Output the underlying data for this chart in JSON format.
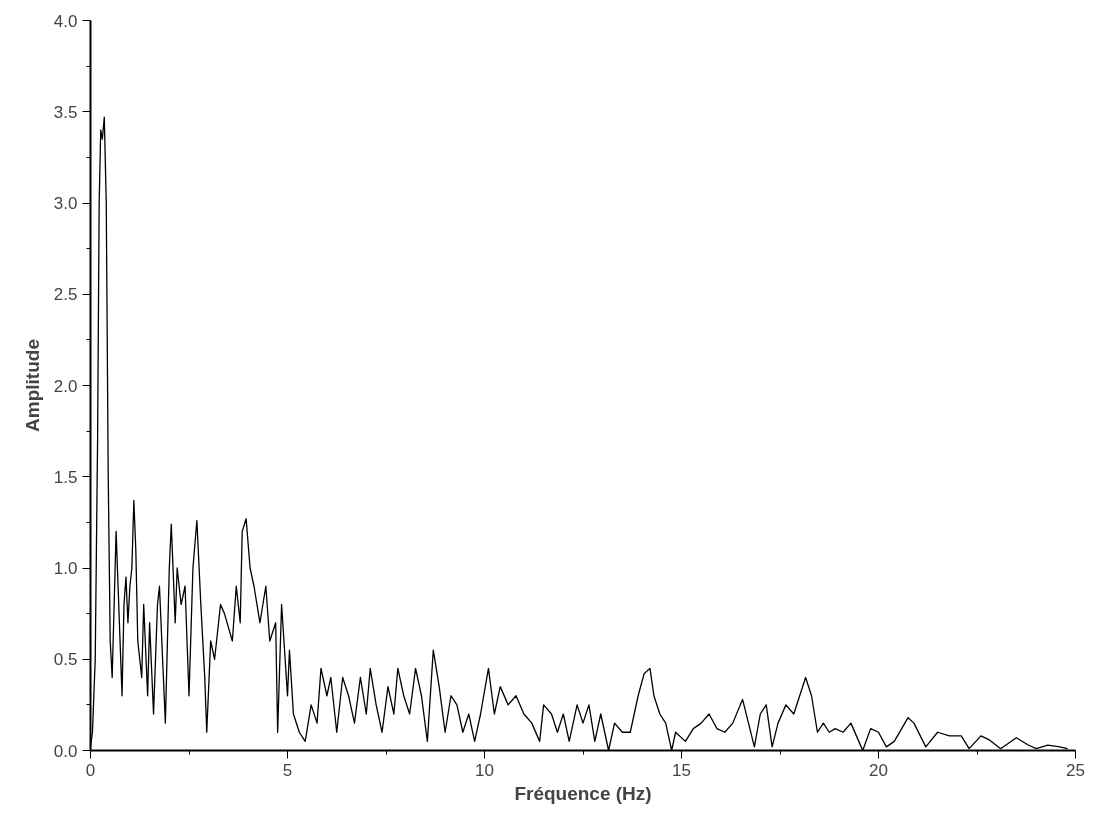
{
  "chart_data": {
    "type": "line",
    "xlabel": "Fréquence (Hz)",
    "ylabel": "Amplitude",
    "xlim": [
      0,
      25
    ],
    "ylim": [
      0,
      4.0
    ],
    "xticks": [
      0,
      5,
      10,
      15,
      20,
      25
    ],
    "yticks": [
      {
        "value": 0,
        "label": "0.0"
      },
      0.5,
      {
        "value": 1,
        "label": "1.0"
      },
      1.5,
      {
        "value": 2,
        "label": "2.0"
      },
      2.5,
      {
        "value": 3,
        "label": "3.0"
      },
      3.5,
      {
        "value": 4,
        "label": "4.0"
      }
    ],
    "grid": false,
    "marker": "none",
    "line_style": "solid",
    "series": [
      {
        "color": "#000000",
        "x": [
          0,
          0.05,
          0.12,
          0.18,
          0.22,
          0.26,
          0.3,
          0.35,
          0.4,
          0.45,
          0.5,
          0.55,
          0.6,
          0.65,
          0.7,
          0.75,
          0.8,
          0.85,
          0.9,
          0.95,
          1.0,
          1.05,
          1.1,
          1.15,
          1.2,
          1.3,
          1.35,
          1.45,
          1.5,
          1.6,
          1.7,
          1.75,
          1.85,
          1.9,
          2.0,
          2.05,
          2.15,
          2.2,
          2.3,
          2.4,
          2.5,
          2.6,
          2.7,
          2.8,
          2.9,
          2.95,
          3.05,
          3.15,
          3.3,
          3.4,
          3.6,
          3.7,
          3.8,
          3.85,
          3.95,
          4.05,
          4.15,
          4.3,
          4.45,
          4.55,
          4.7,
          4.75,
          4.85,
          5.0,
          5.05,
          5.15,
          5.3,
          5.45,
          5.6,
          5.75,
          5.85,
          6.0,
          6.1,
          6.25,
          6.4,
          6.55,
          6.7,
          6.85,
          7.0,
          7.1,
          7.25,
          7.4,
          7.55,
          7.7,
          7.8,
          7.95,
          8.1,
          8.25,
          8.4,
          8.55,
          8.7,
          8.85,
          9.0,
          9.15,
          9.3,
          9.45,
          9.6,
          9.75,
          9.9,
          10.1,
          10.25,
          10.4,
          10.6,
          10.8,
          11.0,
          11.2,
          11.4,
          11.5,
          11.7,
          11.85,
          12.0,
          12.15,
          12.35,
          12.5,
          12.65,
          12.8,
          12.95,
          13.15,
          13.3,
          13.5,
          13.7,
          13.9,
          14.05,
          14.2,
          14.3,
          14.45,
          14.6,
          14.75,
          14.85,
          15.1,
          15.3,
          15.5,
          15.7,
          15.9,
          16.1,
          16.3,
          16.55,
          16.7,
          16.85,
          17.0,
          17.15,
          17.3,
          17.45,
          17.65,
          17.85,
          18.0,
          18.15,
          18.3,
          18.45,
          18.6,
          18.75,
          18.9,
          19.1,
          19.3,
          19.5,
          19.6,
          19.8,
          20.0,
          20.2,
          20.4,
          20.75,
          20.9,
          21.2,
          21.5,
          21.8,
          22.1,
          22.3,
          22.6,
          22.8,
          23.1,
          23.5,
          23.8,
          24.0,
          24.3,
          24.6,
          24.8
        ],
        "values": [
          0.02,
          0.1,
          0.5,
          1.7,
          3.0,
          3.4,
          3.35,
          3.47,
          3.0,
          1.5,
          0.6,
          0.4,
          0.8,
          1.2,
          0.9,
          0.6,
          0.3,
          0.8,
          0.95,
          0.7,
          0.9,
          1.0,
          1.37,
          1.1,
          0.6,
          0.4,
          0.8,
          0.3,
          0.7,
          0.2,
          0.8,
          0.9,
          0.4,
          0.15,
          1.0,
          1.24,
          0.7,
          1.0,
          0.8,
          0.9,
          0.3,
          1.0,
          1.26,
          0.8,
          0.4,
          0.1,
          0.6,
          0.5,
          0.8,
          0.75,
          0.6,
          0.9,
          0.7,
          1.2,
          1.27,
          1.0,
          0.9,
          0.7,
          0.9,
          0.6,
          0.7,
          0.1,
          0.8,
          0.3,
          0.55,
          0.2,
          0.1,
          0.05,
          0.25,
          0.15,
          0.45,
          0.3,
          0.4,
          0.1,
          0.4,
          0.3,
          0.15,
          0.4,
          0.2,
          0.45,
          0.25,
          0.1,
          0.35,
          0.2,
          0.45,
          0.3,
          0.2,
          0.45,
          0.3,
          0.05,
          0.55,
          0.35,
          0.1,
          0.3,
          0.25,
          0.1,
          0.2,
          0.05,
          0.2,
          0.45,
          0.2,
          0.35,
          0.25,
          0.3,
          0.2,
          0.15,
          0.05,
          0.25,
          0.2,
          0.1,
          0.2,
          0.05,
          0.25,
          0.15,
          0.25,
          0.05,
          0.2,
          0.0,
          0.15,
          0.1,
          0.1,
          0.3,
          0.42,
          0.45,
          0.3,
          0.2,
          0.15,
          0.0,
          0.1,
          0.05,
          0.12,
          0.15,
          0.2,
          0.12,
          0.1,
          0.15,
          0.28,
          0.15,
          0.02,
          0.2,
          0.25,
          0.02,
          0.15,
          0.25,
          0.2,
          0.3,
          0.4,
          0.3,
          0.1,
          0.15,
          0.1,
          0.12,
          0.1,
          0.15,
          0.05,
          0.0,
          0.12,
          0.1,
          0.02,
          0.05,
          0.18,
          0.15,
          0.02,
          0.1,
          0.08,
          0.08,
          0.01,
          0.08,
          0.06,
          0.01,
          0.07,
          0.03,
          0.01,
          0.03,
          0.02,
          0.01
        ]
      }
    ]
  }
}
